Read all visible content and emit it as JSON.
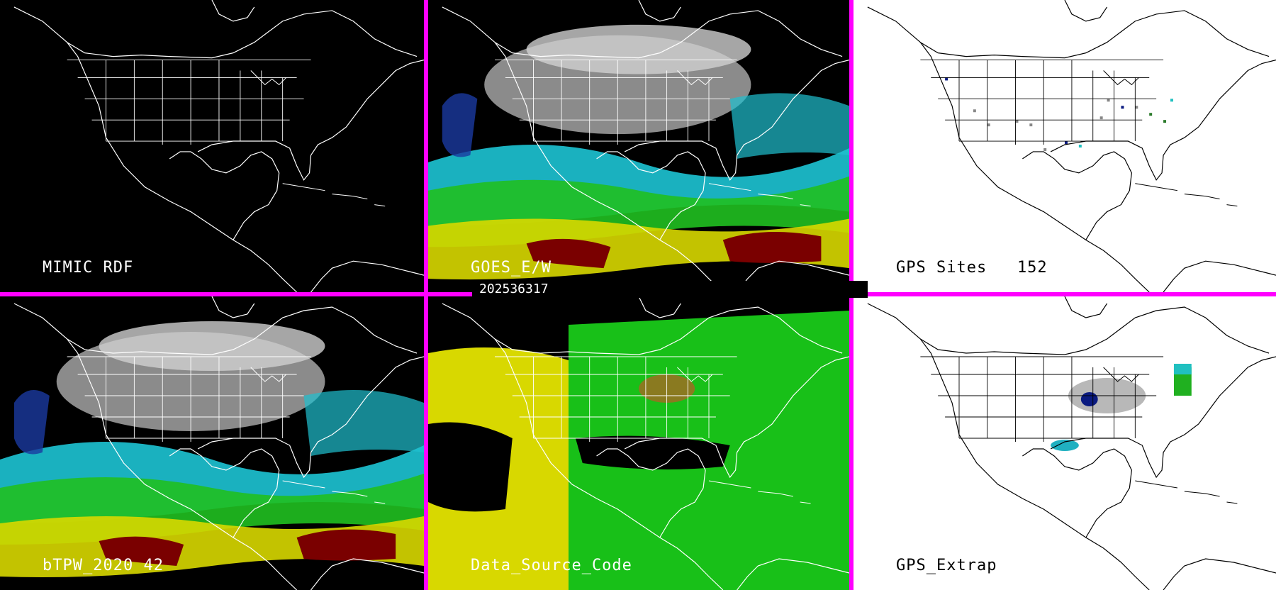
{
  "timestamp": "202536317",
  "colors": {
    "frame": "#ff00ff",
    "dark_bg": "#000000",
    "light_bg": "#ffffff"
  },
  "panels": [
    {
      "id": "mimic-rdf",
      "label": "MIMIC RDF",
      "theme": "dark",
      "overlay": "none"
    },
    {
      "id": "goes-ew",
      "label": "GOES_E/W",
      "theme": "dark",
      "overlay": "tpw"
    },
    {
      "id": "gps-sites",
      "label": "GPS Sites   152",
      "theme": "light",
      "overlay": "sites"
    },
    {
      "id": "btpw",
      "label": "bTPW_2020 42",
      "theme": "dark",
      "overlay": "tpw"
    },
    {
      "id": "data-source-code",
      "label": "Data_Source_Code",
      "theme": "dark",
      "overlay": "source"
    },
    {
      "id": "gps-extrap",
      "label": "GPS_Extrap",
      "theme": "light",
      "overlay": "extrap"
    }
  ]
}
